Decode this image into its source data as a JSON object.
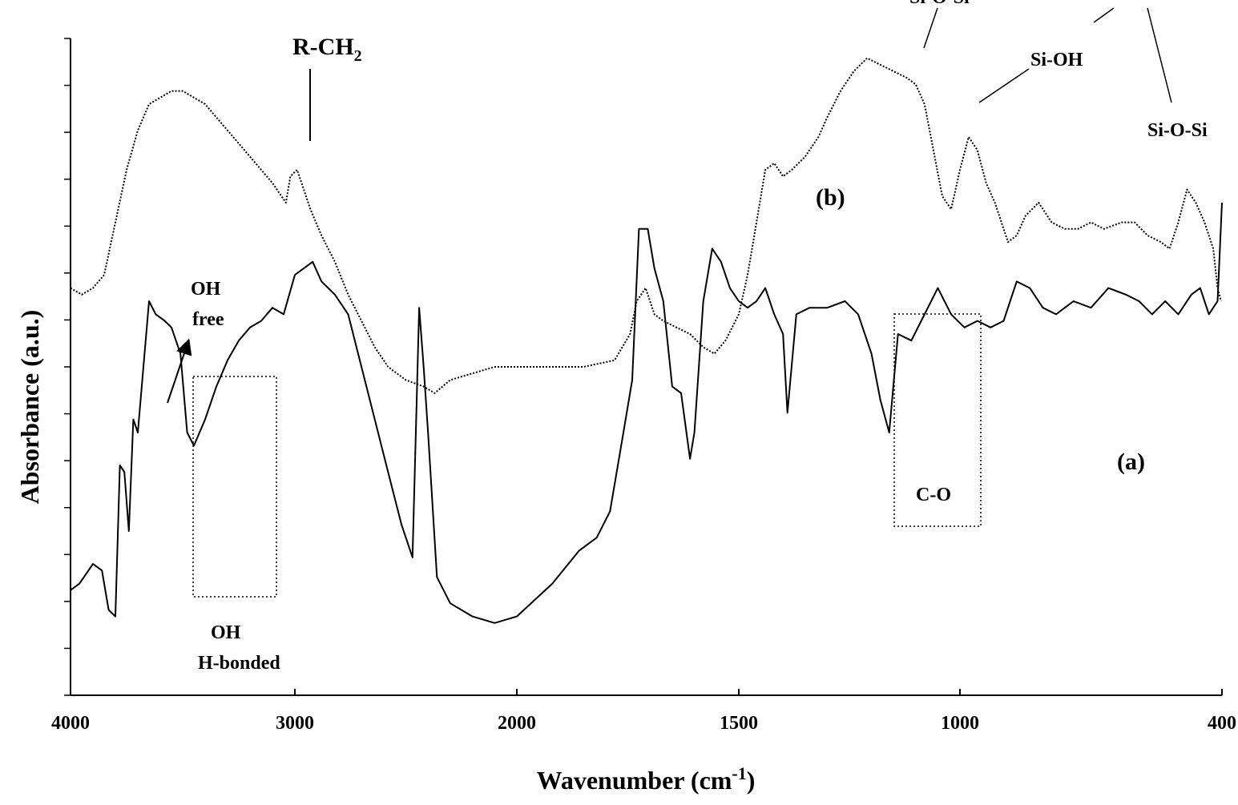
{
  "chart_data": {
    "type": "line",
    "xlabel": "Wavenumber (cm",
    "xlabel_sup": "-1",
    "xlabel_end": ")",
    "ylabel": "Absorbance (a.u.)",
    "x_axis": {
      "direction": "reversed",
      "scale": "piecewise-linear",
      "ticks": [
        4000,
        3000,
        2000,
        1500,
        1000,
        400
      ],
      "tick_labels": [
        "4000",
        "3000",
        "2000",
        "1500",
        "1000",
        "400"
      ]
    },
    "y_axis": {
      "tick_labels_shown": false,
      "range_relative": [
        0,
        100
      ]
    },
    "grid": false,
    "series": [
      {
        "name": "(a)",
        "style": "solid",
        "points": [
          [
            4000,
            16
          ],
          [
            3960,
            17
          ],
          [
            3900,
            20
          ],
          [
            3860,
            19
          ],
          [
            3830,
            13
          ],
          [
            3800,
            12
          ],
          [
            3780,
            35
          ],
          [
            3760,
            34
          ],
          [
            3740,
            25
          ],
          [
            3720,
            42
          ],
          [
            3700,
            40
          ],
          [
            3670,
            52
          ],
          [
            3650,
            60
          ],
          [
            3620,
            58
          ],
          [
            3580,
            57
          ],
          [
            3550,
            56
          ],
          [
            3510,
            52
          ],
          [
            3480,
            40
          ],
          [
            3450,
            38
          ],
          [
            3400,
            42
          ],
          [
            3350,
            47
          ],
          [
            3300,
            51
          ],
          [
            3250,
            54
          ],
          [
            3200,
            56
          ],
          [
            3150,
            57
          ],
          [
            3100,
            59
          ],
          [
            3050,
            58
          ],
          [
            3000,
            64
          ],
          [
            2960,
            65
          ],
          [
            2920,
            66
          ],
          [
            2880,
            63
          ],
          [
            2820,
            61
          ],
          [
            2760,
            58
          ],
          [
            2700,
            50
          ],
          [
            2640,
            42
          ],
          [
            2580,
            34
          ],
          [
            2520,
            26
          ],
          [
            2470,
            21
          ],
          [
            2440,
            59
          ],
          [
            2420,
            50
          ],
          [
            2400,
            40
          ],
          [
            2360,
            18
          ],
          [
            2300,
            14
          ],
          [
            2200,
            12
          ],
          [
            2100,
            11
          ],
          [
            2000,
            12
          ],
          [
            1920,
            17
          ],
          [
            1860,
            22
          ],
          [
            1820,
            24
          ],
          [
            1790,
            28
          ],
          [
            1760,
            40
          ],
          [
            1740,
            48
          ],
          [
            1725,
            71
          ],
          [
            1705,
            71
          ],
          [
            1690,
            65
          ],
          [
            1670,
            60
          ],
          [
            1650,
            47
          ],
          [
            1630,
            46
          ],
          [
            1610,
            36
          ],
          [
            1600,
            40
          ],
          [
            1580,
            60
          ],
          [
            1560,
            68
          ],
          [
            1540,
            66
          ],
          [
            1520,
            62
          ],
          [
            1500,
            60
          ],
          [
            1480,
            59
          ],
          [
            1460,
            60
          ],
          [
            1440,
            62
          ],
          [
            1420,
            58
          ],
          [
            1400,
            55
          ],
          [
            1390,
            43
          ],
          [
            1370,
            58
          ],
          [
            1340,
            59
          ],
          [
            1300,
            59
          ],
          [
            1260,
            60
          ],
          [
            1230,
            58
          ],
          [
            1200,
            52
          ],
          [
            1180,
            45
          ],
          [
            1160,
            40
          ],
          [
            1140,
            55
          ],
          [
            1110,
            54
          ],
          [
            1080,
            58
          ],
          [
            1050,
            62
          ],
          [
            1020,
            58
          ],
          [
            990,
            56
          ],
          [
            960,
            57
          ],
          [
            930,
            56
          ],
          [
            900,
            57
          ],
          [
            870,
            63
          ],
          [
            840,
            62
          ],
          [
            810,
            59
          ],
          [
            780,
            58
          ],
          [
            740,
            60
          ],
          [
            700,
            59
          ],
          [
            660,
            62
          ],
          [
            620,
            61
          ],
          [
            590,
            60
          ],
          [
            560,
            58
          ],
          [
            530,
            60
          ],
          [
            500,
            58
          ],
          [
            470,
            61
          ],
          [
            450,
            62
          ],
          [
            430,
            58
          ],
          [
            410,
            60
          ],
          [
            402,
            72
          ],
          [
            400,
            75
          ]
        ]
      },
      {
        "name": "(b)",
        "style": "dotted",
        "points": [
          [
            4000,
            62
          ],
          [
            3950,
            61
          ],
          [
            3900,
            62
          ],
          [
            3850,
            64
          ],
          [
            3800,
            72
          ],
          [
            3750,
            80
          ],
          [
            3700,
            86
          ],
          [
            3650,
            90
          ],
          [
            3600,
            91
          ],
          [
            3550,
            92
          ],
          [
            3500,
            92
          ],
          [
            3450,
            91
          ],
          [
            3400,
            90
          ],
          [
            3350,
            88
          ],
          [
            3300,
            86
          ],
          [
            3250,
            84
          ],
          [
            3200,
            82
          ],
          [
            3150,
            80
          ],
          [
            3100,
            78
          ],
          [
            3060,
            76
          ],
          [
            3040,
            75
          ],
          [
            3020,
            79
          ],
          [
            2990,
            80
          ],
          [
            2960,
            77
          ],
          [
            2930,
            74
          ],
          [
            2880,
            70
          ],
          [
            2820,
            66
          ],
          [
            2760,
            61
          ],
          [
            2700,
            57
          ],
          [
            2640,
            53
          ],
          [
            2580,
            50
          ],
          [
            2500,
            48
          ],
          [
            2420,
            47
          ],
          [
            2370,
            46
          ],
          [
            2300,
            48
          ],
          [
            2200,
            49
          ],
          [
            2100,
            50
          ],
          [
            1950,
            50
          ],
          [
            1850,
            50
          ],
          [
            1780,
            51
          ],
          [
            1745,
            55
          ],
          [
            1730,
            60
          ],
          [
            1710,
            62
          ],
          [
            1690,
            58
          ],
          [
            1670,
            57
          ],
          [
            1640,
            56
          ],
          [
            1610,
            55
          ],
          [
            1580,
            53
          ],
          [
            1555,
            52
          ],
          [
            1530,
            54
          ],
          [
            1500,
            58
          ],
          [
            1480,
            64
          ],
          [
            1460,
            72
          ],
          [
            1440,
            80
          ],
          [
            1420,
            81
          ],
          [
            1400,
            79
          ],
          [
            1380,
            80
          ],
          [
            1350,
            82
          ],
          [
            1320,
            85
          ],
          [
            1300,
            88
          ],
          [
            1270,
            92
          ],
          [
            1240,
            95
          ],
          [
            1210,
            97
          ],
          [
            1180,
            96
          ],
          [
            1150,
            95
          ],
          [
            1120,
            94
          ],
          [
            1100,
            93
          ],
          [
            1080,
            90
          ],
          [
            1060,
            83
          ],
          [
            1040,
            76
          ],
          [
            1020,
            74
          ],
          [
            1000,
            80
          ],
          [
            980,
            85
          ],
          [
            960,
            83
          ],
          [
            940,
            78
          ],
          [
            920,
            75
          ],
          [
            890,
            69
          ],
          [
            870,
            70
          ],
          [
            850,
            73
          ],
          [
            820,
            75
          ],
          [
            790,
            72
          ],
          [
            760,
            71
          ],
          [
            730,
            71
          ],
          [
            700,
            72
          ],
          [
            670,
            71
          ],
          [
            630,
            72
          ],
          [
            600,
            72
          ],
          [
            570,
            70
          ],
          [
            540,
            69
          ],
          [
            520,
            68
          ],
          [
            500,
            72
          ],
          [
            480,
            77
          ],
          [
            460,
            75
          ],
          [
            440,
            72
          ],
          [
            420,
            68
          ],
          [
            410,
            62
          ],
          [
            402,
            60
          ]
        ]
      }
    ],
    "annotations": [
      {
        "key": "r_ch2",
        "text": "R-CH",
        "sub": "2"
      },
      {
        "key": "sio_si_top",
        "text": "Si-O-Si"
      },
      {
        "key": "si_oh",
        "text": "Si-OH"
      },
      {
        "key": "sio_si_right",
        "text": "Si-O-Si"
      },
      {
        "key": "oh_free_1",
        "text": "OH"
      },
      {
        "key": "oh_free_2",
        "text": "free"
      },
      {
        "key": "oh_hb_1",
        "text": "OH"
      },
      {
        "key": "oh_hb_2",
        "text": "H-bonded"
      },
      {
        "key": "co",
        "text": "C-O"
      },
      {
        "key": "label_b",
        "text": "(b)"
      },
      {
        "key": "label_a",
        "text": "(a)"
      }
    ]
  }
}
